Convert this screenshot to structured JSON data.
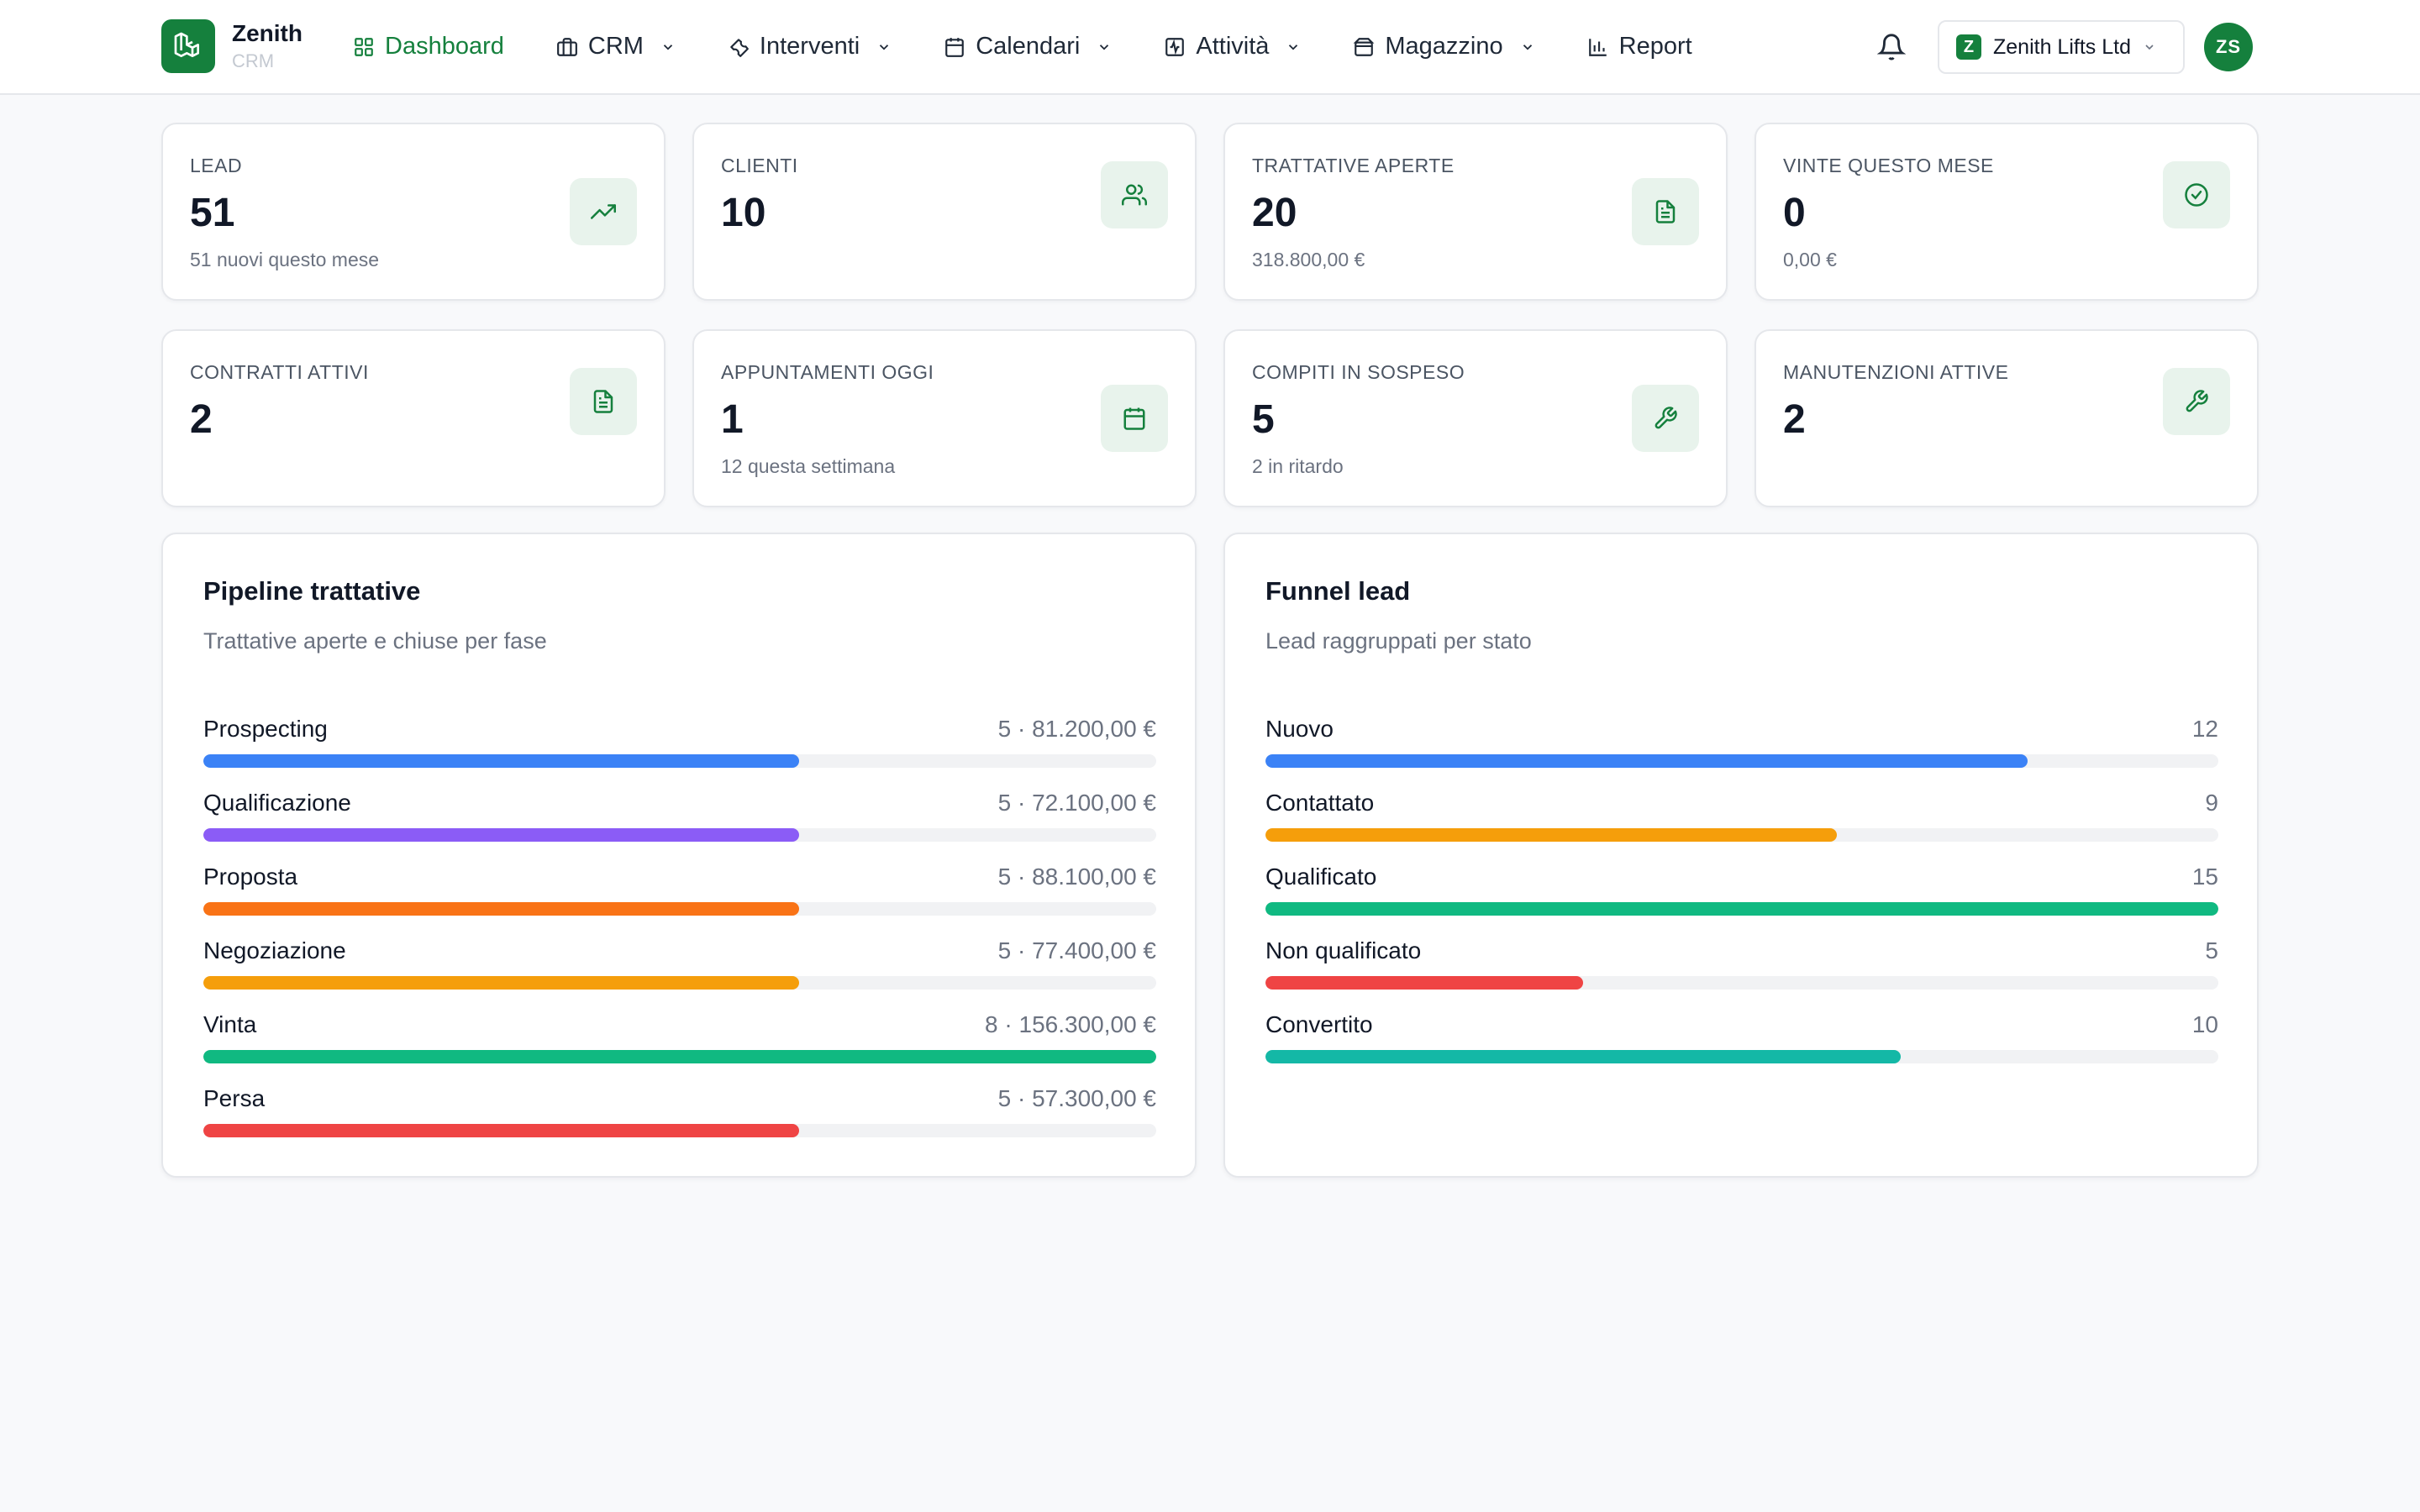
{
  "brand": {
    "name": "Zenith",
    "sub": "CRM"
  },
  "nav": {
    "items": [
      {
        "label": "Dashboard",
        "icon": "grid-icon",
        "active": true,
        "dropdown": false
      },
      {
        "label": "CRM",
        "icon": "briefcase-icon",
        "active": false,
        "dropdown": true
      },
      {
        "label": "Interventi",
        "icon": "wrench-icon",
        "active": false,
        "dropdown": true
      },
      {
        "label": "Calendari",
        "icon": "calendar-icon",
        "active": false,
        "dropdown": true
      },
      {
        "label": "Attività",
        "icon": "activity-icon",
        "active": false,
        "dropdown": true
      },
      {
        "label": "Magazzino",
        "icon": "package-icon",
        "active": false,
        "dropdown": true
      },
      {
        "label": "Report",
        "icon": "bar-chart-icon",
        "active": false,
        "dropdown": false
      }
    ],
    "org": {
      "badge": "Z",
      "name": "Zenith Lifts Ltd"
    },
    "avatar": "ZS"
  },
  "stats": [
    {
      "label": "LEAD",
      "value": "51",
      "sub": "51 nuovi questo mese",
      "icon": "trending-up-icon"
    },
    {
      "label": "CLIENTI",
      "value": "10",
      "sub": "",
      "icon": "users-icon"
    },
    {
      "label": "TRATTATIVE APERTE",
      "value": "20",
      "sub": "318.800,00 €",
      "icon": "file-text-icon"
    },
    {
      "label": "VINTE QUESTO MESE",
      "value": "0",
      "sub": "0,00 €",
      "icon": "check-circle-icon"
    },
    {
      "label": "CONTRATTI ATTIVI",
      "value": "2",
      "sub": "",
      "icon": "file-text-icon"
    },
    {
      "label": "APPUNTAMENTI OGGI",
      "value": "1",
      "sub": "12 questa settimana",
      "icon": "calendar-icon"
    },
    {
      "label": "COMPITI IN SOSPESO",
      "value": "5",
      "sub": "2 in ritardo",
      "icon": "wrench-icon"
    },
    {
      "label": "MANUTENZIONI ATTIVE",
      "value": "2",
      "sub": "",
      "icon": "wrench-icon"
    }
  ],
  "pipeline": {
    "title": "Pipeline trattative",
    "subtitle": "Trattative aperte e chiuse per fase",
    "rows": [
      {
        "label": "Prospecting",
        "value": "5 · 81.200,00 €",
        "fraction": 0.625,
        "color": "#3b82f6"
      },
      {
        "label": "Qualificazione",
        "value": "5 · 72.100,00 €",
        "fraction": 0.625,
        "color": "#8b5cf6"
      },
      {
        "label": "Proposta",
        "value": "5 · 88.100,00 €",
        "fraction": 0.625,
        "color": "#f97316"
      },
      {
        "label": "Negoziazione",
        "value": "5 · 77.400,00 €",
        "fraction": 0.625,
        "color": "#f59e0b"
      },
      {
        "label": "Vinta",
        "value": "8 · 156.300,00 €",
        "fraction": 1.0,
        "color": "#10b981"
      },
      {
        "label": "Persa",
        "value": "5 · 57.300,00 €",
        "fraction": 0.625,
        "color": "#ef4444"
      }
    ]
  },
  "funnel": {
    "title": "Funnel lead",
    "subtitle": "Lead raggruppati per stato",
    "rows": [
      {
        "label": "Nuovo",
        "value": "12",
        "fraction": 0.8,
        "color": "#3b82f6"
      },
      {
        "label": "Contattato",
        "value": "9",
        "fraction": 0.6,
        "color": "#f59e0b"
      },
      {
        "label": "Qualificato",
        "value": "15",
        "fraction": 1.0,
        "color": "#10b981"
      },
      {
        "label": "Non qualificato",
        "value": "5",
        "fraction": 0.333,
        "color": "#ef4444"
      },
      {
        "label": "Convertito",
        "value": "10",
        "fraction": 0.667,
        "color": "#14b8a6"
      }
    ]
  },
  "colors": {
    "brand": "#15803d",
    "icon_bg": "#e8f3ec"
  }
}
